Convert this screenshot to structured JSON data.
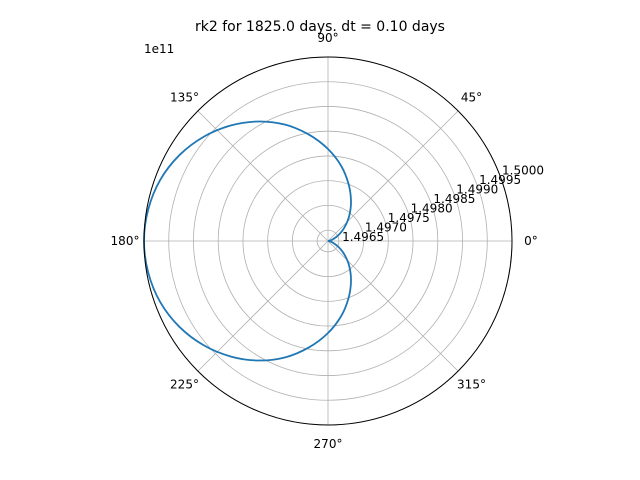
{
  "chart_data": {
    "type": "polar-line",
    "title": "rk2 for 1825.0 days. dt = 0.10 days",
    "offset_label": "1e11",
    "angle_ticks": [
      {
        "deg": 0,
        "label": "0°"
      },
      {
        "deg": 45,
        "label": "45°"
      },
      {
        "deg": 90,
        "label": "90°"
      },
      {
        "deg": 135,
        "label": "135°"
      },
      {
        "deg": 180,
        "label": "180°"
      },
      {
        "deg": 225,
        "label": "225°"
      },
      {
        "deg": 270,
        "label": "270°"
      },
      {
        "deg": 315,
        "label": "315°"
      }
    ],
    "radial_ticks": [
      {
        "value": 1.4965,
        "label": "1.4965"
      },
      {
        "value": 1.497,
        "label": "1.4970"
      },
      {
        "value": 1.4975,
        "label": "1.4975"
      },
      {
        "value": 1.498,
        "label": "1.4980"
      },
      {
        "value": 1.4985,
        "label": "1.4985"
      },
      {
        "value": 1.499,
        "label": "1.4990"
      },
      {
        "value": 1.4995,
        "label": "1.4995"
      },
      {
        "value": 1.5,
        "label": "1.5000"
      }
    ],
    "rlim": [
      1.49628,
      1.5
    ],
    "grid": true,
    "series": [
      {
        "color": "#1f77b4",
        "theta_deg": [
          0,
          10,
          20,
          30,
          40,
          50,
          60,
          70,
          80,
          90,
          100,
          110,
          120,
          130,
          140,
          150,
          160,
          170,
          180,
          190,
          200,
          210,
          220,
          230,
          240,
          250,
          260,
          270,
          280,
          290,
          300,
          310,
          320,
          330,
          340,
          350,
          360
        ],
        "r": [
          1.49628,
          1.49631,
          1.49639,
          1.49653,
          1.49672,
          1.49695,
          1.49721,
          1.4975,
          1.49782,
          1.49814,
          1.49846,
          1.49878,
          1.49907,
          1.49933,
          1.49956,
          1.49975,
          1.49989,
          1.49997,
          1.5,
          1.49997,
          1.49989,
          1.49975,
          1.49956,
          1.49933,
          1.49907,
          1.49878,
          1.49846,
          1.49814,
          1.49782,
          1.4975,
          1.49721,
          1.49695,
          1.49672,
          1.49653,
          1.49639,
          1.49631,
          1.49628
        ]
      }
    ]
  }
}
